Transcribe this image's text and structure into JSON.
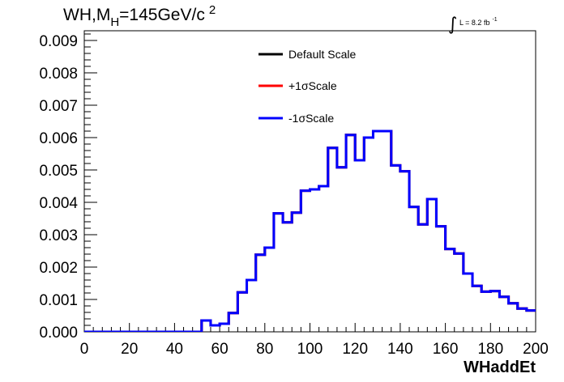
{
  "chart_data": {
    "type": "line",
    "title": {
      "main": "WH,M",
      "sub": "H",
      "rest": "=145GeV/c",
      "sup": "2"
    },
    "lumi": {
      "symbol": "∫",
      "text": "L = 8.2 fb",
      "sup": "-1"
    },
    "xlabel": "WHaddEt",
    "ylabel": "",
    "xlim": [
      0,
      200
    ],
    "ylim": [
      0,
      0.0093
    ],
    "x_ticks": [
      0,
      20,
      40,
      60,
      80,
      100,
      120,
      140,
      160,
      180,
      200
    ],
    "x_tick_labels": [
      "0",
      "20",
      "40",
      "60",
      "80",
      "100",
      "120",
      "140",
      "160",
      "180",
      "200"
    ],
    "y_ticks": [
      0,
      0.001,
      0.002,
      0.003,
      0.004,
      0.005,
      0.006,
      0.007,
      0.008,
      0.009
    ],
    "y_tick_labels": [
      "0.000",
      "0.001",
      "0.002",
      "0.003",
      "0.004",
      "0.005",
      "0.006",
      "0.007",
      "0.008",
      "0.009"
    ],
    "bin_edges": [
      0,
      4,
      8,
      12,
      16,
      20,
      24,
      28,
      32,
      36,
      40,
      44,
      48,
      52,
      56,
      60,
      64,
      68,
      72,
      76,
      80,
      84,
      88,
      92,
      96,
      100,
      104,
      108,
      112,
      116,
      120,
      124,
      128,
      132,
      136,
      140,
      144,
      148,
      152,
      156,
      160,
      164,
      168,
      172,
      176,
      180,
      184,
      188,
      192,
      196,
      200
    ],
    "series": [
      {
        "name": "Default Scale",
        "color": "#000000",
        "values": [
          0,
          0,
          0,
          0,
          0,
          0,
          0,
          0,
          0,
          0,
          0,
          0,
          0,
          0.00035,
          0.0002,
          0.00025,
          0.00058,
          0.00122,
          0.0016,
          0.00238,
          0.0026,
          0.00366,
          0.00338,
          0.00368,
          0.00436,
          0.0044,
          0.0045,
          0.00568,
          0.00508,
          0.00608,
          0.0053,
          0.006,
          0.0062,
          0.0062,
          0.00514,
          0.00496,
          0.00386,
          0.00332,
          0.0041,
          0.00326,
          0.00256,
          0.00242,
          0.0018,
          0.00142,
          0.00124,
          0.00126,
          0.00108,
          0.00088,
          0.00072,
          0.00066
        ]
      },
      {
        "name": "+1σScale",
        "color": "#ff0000",
        "values": [
          0,
          0,
          0,
          0,
          0,
          0,
          0,
          0,
          0,
          0,
          0,
          0,
          0,
          0.00035,
          0.0002,
          0.00025,
          0.00058,
          0.00122,
          0.0016,
          0.00238,
          0.0026,
          0.00366,
          0.00338,
          0.00368,
          0.00436,
          0.0044,
          0.0045,
          0.00568,
          0.00508,
          0.00608,
          0.0053,
          0.006,
          0.0062,
          0.0062,
          0.00514,
          0.00496,
          0.00386,
          0.00332,
          0.0041,
          0.00326,
          0.00256,
          0.00242,
          0.0018,
          0.00142,
          0.00124,
          0.00126,
          0.00108,
          0.00088,
          0.00072,
          0.00066
        ]
      },
      {
        "name": "-1σScale",
        "color": "#0000ff",
        "values": [
          0,
          0,
          0,
          0,
          0,
          0,
          0,
          0,
          0,
          0,
          0,
          0,
          0,
          0.00035,
          0.0002,
          0.00025,
          0.00058,
          0.00122,
          0.0016,
          0.00238,
          0.0026,
          0.00366,
          0.00338,
          0.00368,
          0.00436,
          0.0044,
          0.0045,
          0.00568,
          0.00508,
          0.00608,
          0.0053,
          0.006,
          0.0062,
          0.0062,
          0.00514,
          0.00496,
          0.00386,
          0.00332,
          0.0041,
          0.00326,
          0.00256,
          0.00242,
          0.0018,
          0.00142,
          0.00124,
          0.00126,
          0.00108,
          0.00088,
          0.00072,
          0.00066
        ]
      }
    ],
    "legend_position": "top-center",
    "grid": false
  }
}
